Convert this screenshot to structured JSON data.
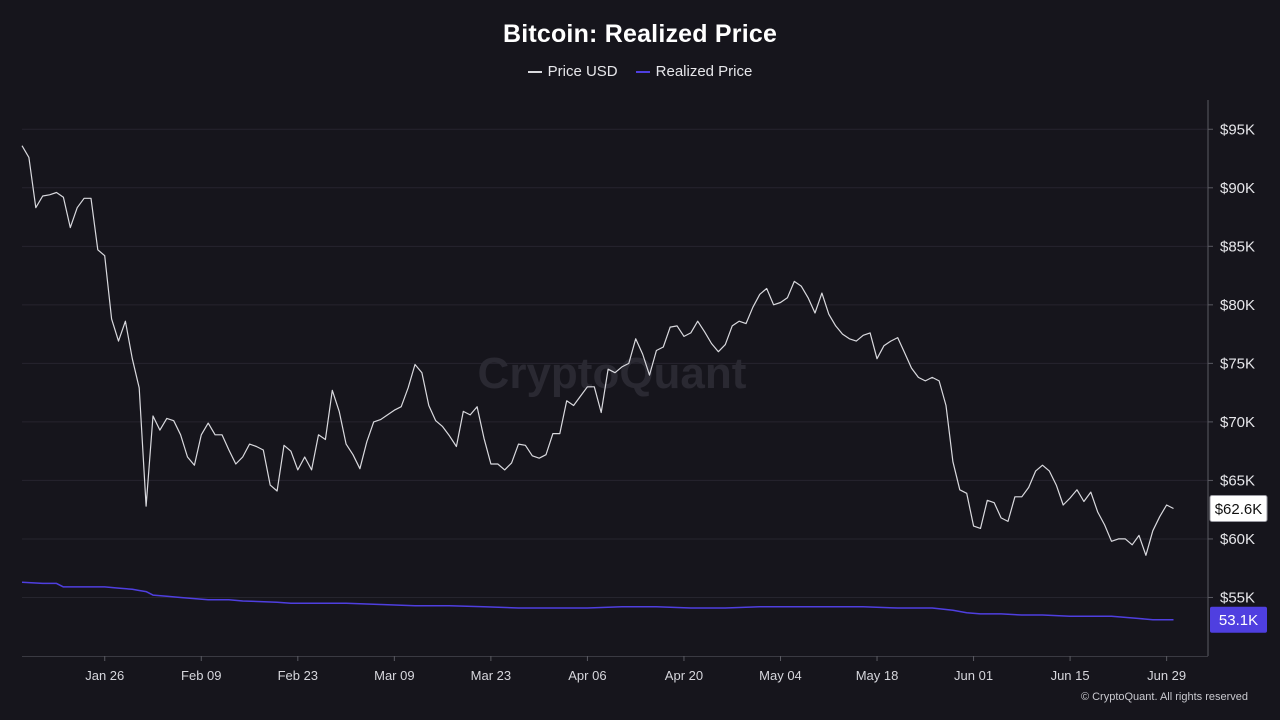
{
  "header": {
    "title": "Bitcoin: Realized Price"
  },
  "legend": [
    {
      "label": "Price USD",
      "color": "#d9d9de"
    },
    {
      "label": "Realized Price",
      "color": "#4f3fe0"
    }
  ],
  "watermark": "CryptoQuant",
  "copyright": "© CryptoQuant. All rights reserved",
  "chart_data": {
    "type": "line",
    "title": "Bitcoin: Realized Price",
    "xlabel": "",
    "ylabel": "",
    "grid": true,
    "legend_position": "top-center",
    "ylim": [
      50000,
      97500
    ],
    "xlim": [
      -12,
      160
    ],
    "x_ticks": [
      {
        "label": "Jan 26",
        "x": 0
      },
      {
        "label": "Feb 09",
        "x": 14
      },
      {
        "label": "Feb 23",
        "x": 28
      },
      {
        "label": "Mar 09",
        "x": 42
      },
      {
        "label": "Mar 23",
        "x": 56
      },
      {
        "label": "Apr 06",
        "x": 70
      },
      {
        "label": "Apr 20",
        "x": 84
      },
      {
        "label": "May 04",
        "x": 98
      },
      {
        "label": "May 18",
        "x": 112
      },
      {
        "label": "Jun 01",
        "x": 126
      },
      {
        "label": "Jun 15",
        "x": 140
      },
      {
        "label": "Jun 29",
        "x": 154
      }
    ],
    "y_ticks": [
      {
        "label": "$55K",
        "value": 55000
      },
      {
        "label": "$60K",
        "value": 60000
      },
      {
        "label": "$65K",
        "value": 65000
      },
      {
        "label": "$70K",
        "value": 70000
      },
      {
        "label": "$75K",
        "value": 75000
      },
      {
        "label": "$80K",
        "value": 80000
      },
      {
        "label": "$85K",
        "value": 85000
      },
      {
        "label": "$90K",
        "value": 90000
      },
      {
        "label": "$95K",
        "value": 95000
      }
    ],
    "series": [
      {
        "name": "Price USD",
        "color": "#d9d9de",
        "last_label": "$62.6K",
        "points": [
          [
            -12,
            93600
          ],
          [
            -11,
            92600
          ],
          [
            -10,
            88300
          ],
          [
            -9,
            89300
          ],
          [
            -8,
            89400
          ],
          [
            -7,
            89600
          ],
          [
            -6,
            89200
          ],
          [
            -5,
            86600
          ],
          [
            -4,
            88300
          ],
          [
            -3,
            89100
          ],
          [
            -2,
            89100
          ],
          [
            -1,
            84700
          ],
          [
            0,
            84200
          ],
          [
            1,
            78800
          ],
          [
            2,
            76900
          ],
          [
            3,
            78600
          ],
          [
            4,
            75400
          ],
          [
            5,
            72900
          ],
          [
            6,
            62800
          ],
          [
            7,
            70500
          ],
          [
            8,
            69300
          ],
          [
            9,
            70300
          ],
          [
            10,
            70100
          ],
          [
            11,
            68900
          ],
          [
            12,
            67000
          ],
          [
            13,
            66300
          ],
          [
            14,
            68900
          ],
          [
            15,
            69900
          ],
          [
            16,
            68900
          ],
          [
            17,
            68900
          ],
          [
            18,
            67600
          ],
          [
            19,
            66400
          ],
          [
            20,
            67000
          ],
          [
            21,
            68100
          ],
          [
            22,
            67900
          ],
          [
            23,
            67600
          ],
          [
            24,
            64600
          ],
          [
            25,
            64100
          ],
          [
            26,
            68000
          ],
          [
            27,
            67500
          ],
          [
            28,
            65900
          ],
          [
            29,
            67000
          ],
          [
            30,
            65900
          ],
          [
            31,
            68900
          ],
          [
            32,
            68500
          ],
          [
            33,
            72700
          ],
          [
            34,
            70900
          ],
          [
            35,
            68100
          ],
          [
            36,
            67200
          ],
          [
            37,
            66000
          ],
          [
            38,
            68300
          ],
          [
            39,
            70000
          ],
          [
            40,
            70200
          ],
          [
            41,
            70600
          ],
          [
            42,
            71000
          ],
          [
            43,
            71300
          ],
          [
            44,
            72900
          ],
          [
            45,
            74900
          ],
          [
            46,
            74200
          ],
          [
            47,
            71400
          ],
          [
            48,
            70100
          ],
          [
            49,
            69600
          ],
          [
            50,
            68800
          ],
          [
            51,
            67900
          ],
          [
            52,
            70900
          ],
          [
            53,
            70600
          ],
          [
            54,
            71300
          ],
          [
            55,
            68600
          ],
          [
            56,
            66400
          ],
          [
            57,
            66400
          ],
          [
            58,
            65900
          ],
          [
            59,
            66500
          ],
          [
            60,
            68100
          ],
          [
            61,
            68000
          ],
          [
            62,
            67100
          ],
          [
            63,
            66900
          ],
          [
            64,
            67200
          ],
          [
            65,
            69000
          ],
          [
            66,
            69000
          ],
          [
            67,
            71800
          ],
          [
            68,
            71400
          ],
          [
            69,
            72200
          ],
          [
            70,
            73000
          ],
          [
            71,
            73000
          ],
          [
            72,
            70800
          ],
          [
            73,
            74500
          ],
          [
            74,
            74200
          ],
          [
            75,
            74700
          ],
          [
            76,
            75000
          ],
          [
            77,
            77100
          ],
          [
            78,
            75800
          ],
          [
            79,
            74000
          ],
          [
            80,
            76100
          ],
          [
            81,
            76400
          ],
          [
            82,
            78100
          ],
          [
            83,
            78200
          ],
          [
            84,
            77300
          ],
          [
            85,
            77600
          ],
          [
            86,
            78600
          ],
          [
            87,
            77700
          ],
          [
            88,
            76700
          ],
          [
            89,
            76000
          ],
          [
            90,
            76600
          ],
          [
            91,
            78200
          ],
          [
            92,
            78600
          ],
          [
            93,
            78400
          ],
          [
            94,
            79800
          ],
          [
            95,
            80900
          ],
          [
            96,
            81400
          ],
          [
            97,
            80000
          ],
          [
            98,
            80200
          ],
          [
            99,
            80600
          ],
          [
            100,
            82000
          ],
          [
            101,
            81600
          ],
          [
            102,
            80600
          ],
          [
            103,
            79300
          ],
          [
            104,
            81000
          ],
          [
            105,
            79200
          ],
          [
            106,
            78200
          ],
          [
            107,
            77500
          ],
          [
            108,
            77100
          ],
          [
            109,
            76900
          ],
          [
            110,
            77400
          ],
          [
            111,
            77600
          ],
          [
            112,
            75400
          ],
          [
            113,
            76500
          ],
          [
            114,
            76900
          ],
          [
            115,
            77200
          ],
          [
            116,
            75900
          ],
          [
            117,
            74600
          ],
          [
            118,
            73800
          ],
          [
            119,
            73500
          ],
          [
            120,
            73800
          ],
          [
            121,
            73500
          ],
          [
            122,
            71400
          ],
          [
            123,
            66600
          ],
          [
            124,
            64200
          ],
          [
            125,
            63900
          ],
          [
            126,
            61100
          ],
          [
            127,
            60900
          ],
          [
            128,
            63300
          ],
          [
            129,
            63100
          ],
          [
            130,
            61800
          ],
          [
            131,
            61500
          ],
          [
            132,
            63600
          ],
          [
            133,
            63600
          ],
          [
            134,
            64400
          ],
          [
            135,
            65800
          ],
          [
            136,
            66300
          ],
          [
            137,
            65800
          ],
          [
            138,
            64600
          ],
          [
            139,
            62900
          ],
          [
            140,
            63500
          ],
          [
            141,
            64200
          ],
          [
            142,
            63200
          ],
          [
            143,
            64000
          ],
          [
            144,
            62300
          ],
          [
            145,
            61200
          ],
          [
            146,
            59800
          ],
          [
            147,
            60000
          ],
          [
            148,
            60000
          ],
          [
            149,
            59500
          ],
          [
            150,
            60300
          ],
          [
            151,
            58600
          ],
          [
            152,
            60700
          ],
          [
            153,
            61900
          ],
          [
            154,
            62900
          ],
          [
            155,
            62600
          ]
        ]
      },
      {
        "name": "Realized Price",
        "color": "#4f3fe0",
        "last_label": "53.1K",
        "points": [
          [
            -12,
            56300
          ],
          [
            -9,
            56200
          ],
          [
            -7,
            56200
          ],
          [
            -6,
            55900
          ],
          [
            -3,
            55900
          ],
          [
            0,
            55900
          ],
          [
            2,
            55800
          ],
          [
            4,
            55700
          ],
          [
            5,
            55600
          ],
          [
            6,
            55500
          ],
          [
            7,
            55200
          ],
          [
            9,
            55100
          ],
          [
            11,
            55000
          ],
          [
            13,
            54900
          ],
          [
            15,
            54800
          ],
          [
            18,
            54800
          ],
          [
            20,
            54700
          ],
          [
            25,
            54600
          ],
          [
            27,
            54500
          ],
          [
            30,
            54500
          ],
          [
            35,
            54500
          ],
          [
            40,
            54400
          ],
          [
            45,
            54300
          ],
          [
            50,
            54300
          ],
          [
            55,
            54200
          ],
          [
            60,
            54100
          ],
          [
            65,
            54100
          ],
          [
            70,
            54100
          ],
          [
            75,
            54200
          ],
          [
            80,
            54200
          ],
          [
            85,
            54100
          ],
          [
            90,
            54100
          ],
          [
            95,
            54200
          ],
          [
            100,
            54200
          ],
          [
            105,
            54200
          ],
          [
            110,
            54200
          ],
          [
            115,
            54100
          ],
          [
            120,
            54100
          ],
          [
            123,
            53900
          ],
          [
            125,
            53700
          ],
          [
            127,
            53600
          ],
          [
            130,
            53600
          ],
          [
            133,
            53500
          ],
          [
            136,
            53500
          ],
          [
            140,
            53400
          ],
          [
            143,
            53400
          ],
          [
            146,
            53400
          ],
          [
            148,
            53300
          ],
          [
            150,
            53200
          ],
          [
            152,
            53100
          ],
          [
            155,
            53100
          ]
        ]
      }
    ]
  }
}
